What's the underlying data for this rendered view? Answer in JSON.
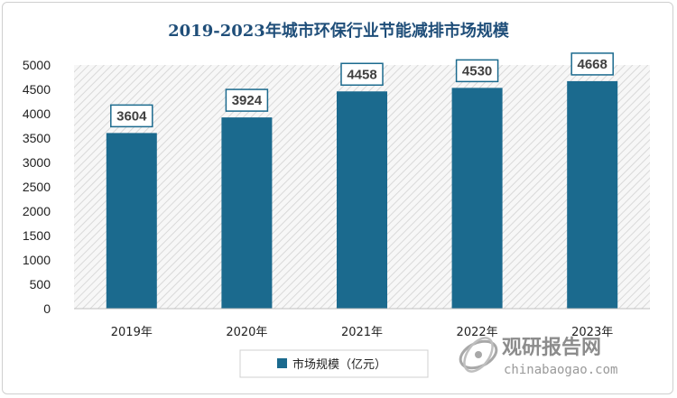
{
  "chart_data": {
    "type": "bar",
    "title": "2019-2023年城市环保行业节能减排市场规模",
    "categories": [
      "2019年",
      "2020年",
      "2021年",
      "2022年",
      "2023年"
    ],
    "series": [
      {
        "name": "市场规模（亿元）",
        "values": [
          3604,
          3924,
          4458,
          4530,
          4668
        ],
        "color": "#1b6a8e"
      }
    ],
    "ylim": [
      0,
      5000
    ],
    "yticks": [
      0,
      500,
      1000,
      1500,
      2000,
      2500,
      3000,
      3500,
      4000,
      4500,
      5000
    ],
    "legend_position": "bottom-center",
    "plot_background": "hatched-light-gray"
  },
  "watermark": {
    "name": "观研报告网",
    "url": "chinabaogao.com",
    "icon": "globe-swirl-logo"
  }
}
